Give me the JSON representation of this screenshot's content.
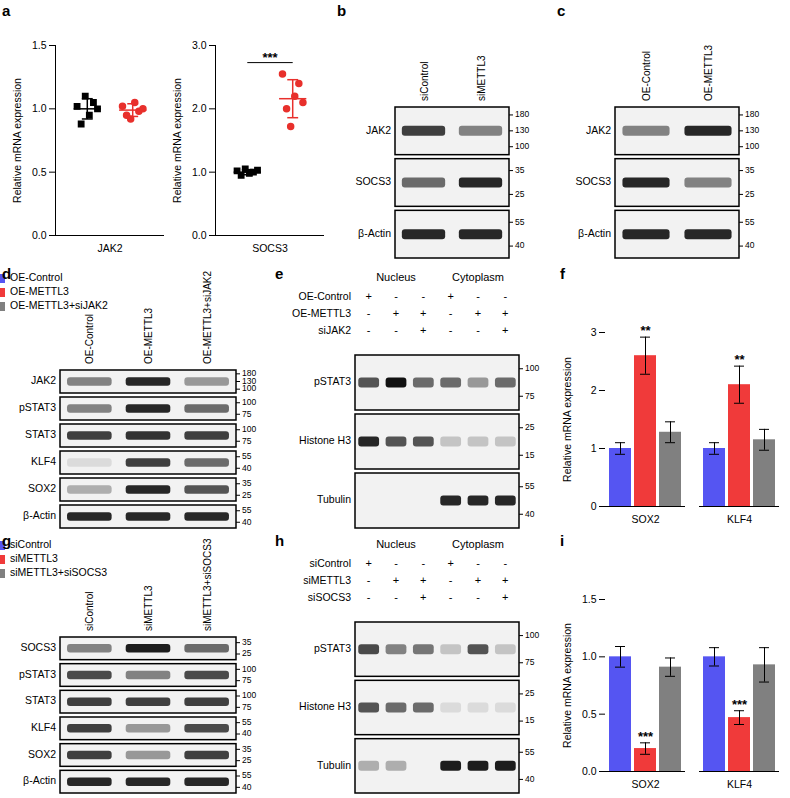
{
  "chart_data": [
    {
      "panel": "a",
      "type": "scatter",
      "ylabel": "Relative mRNA expression",
      "category": "JAK2",
      "ylim": [
        0,
        1.5
      ],
      "yticks": [
        {
          "value": 0,
          "label": "0.0"
        },
        0.5,
        {
          "value": 1,
          "label": "1.0"
        },
        1.5
      ],
      "legend": "top-right",
      "series": [
        {
          "name": "siControl",
          "color": "#000000",
          "marker": "square",
          "values": [
            1.02,
            0.88,
            1.1,
            0.95,
            1.05,
            1.0
          ],
          "mean": 1.0,
          "sd": 0.08
        },
        {
          "name": "siMETTL3",
          "color": "#e8302c",
          "marker": "circle",
          "values": [
            1.02,
            0.95,
            0.92,
            1.05,
            0.98,
            1.0
          ],
          "mean": 0.99,
          "sd": 0.05
        }
      ]
    },
    {
      "type": "scatter",
      "ylabel": "Relative mRNA expression",
      "category": "SOCS3",
      "ylim": [
        0,
        3
      ],
      "yticks": [
        {
          "value": 0,
          "label": "0.0"
        },
        {
          "value": 1,
          "label": "1.0"
        },
        {
          "value": 2,
          "label": "2.0"
        },
        {
          "value": 3,
          "label": "3.0"
        }
      ],
      "legend": "top-right",
      "significance": "***",
      "series": [
        {
          "name": "siControl",
          "color": "#000000",
          "marker": "square",
          "values": [
            1.02,
            0.95,
            1.05,
            0.98,
            1.0,
            1.03
          ],
          "mean": 1.0,
          "sd": 0.04
        },
        {
          "name": "siMETTL3",
          "color": "#e8302c",
          "marker": "circle",
          "values": [
            2.55,
            2.0,
            1.72,
            2.2,
            2.4,
            2.1
          ],
          "mean": 2.16,
          "sd": 0.3
        }
      ]
    },
    {
      "panel": "f",
      "type": "bar",
      "ylabel": "Relative mRNA expression",
      "categories": [
        "SOX2",
        "KLF4"
      ],
      "ylim": [
        0,
        3
      ],
      "yticks": [
        0,
        1,
        2,
        3
      ],
      "legend": "top-right",
      "series": [
        {
          "name": "OE-Control",
          "color": "#5555f2",
          "values": [
            1.0,
            1.0
          ],
          "error": [
            0.1,
            0.1
          ]
        },
        {
          "name": "OE-METTL3",
          "color": "#f03a3a",
          "values": [
            2.6,
            2.1
          ],
          "error": [
            0.32,
            0.32
          ],
          "significance": [
            "**",
            "**"
          ]
        },
        {
          "name": "OE-METTL3+siJAK2",
          "color": "#808080",
          "values": [
            1.28,
            1.15
          ],
          "error": [
            0.18,
            0.18
          ]
        }
      ]
    },
    {
      "panel": "i",
      "type": "bar",
      "ylabel": "Relative mRNA expression",
      "categories": [
        "SOX2",
        "KLF4"
      ],
      "ylim": [
        0,
        1.5
      ],
      "yticks": [
        {
          "value": 0,
          "label": "0.0"
        },
        0.5,
        {
          "value": 1,
          "label": "1.0"
        },
        1.5
      ],
      "legend": "top-right",
      "series": [
        {
          "name": "siControl",
          "color": "#5555f2",
          "values": [
            1.0,
            1.0
          ],
          "error": [
            0.09,
            0.08
          ]
        },
        {
          "name": "siMETTL3",
          "color": "#f03a3a",
          "values": [
            0.2,
            0.47
          ],
          "error": [
            0.05,
            0.06
          ],
          "significance": [
            "***",
            "***"
          ]
        },
        {
          "name": "siMETTL3+siSOCS3",
          "color": "#808080",
          "values": [
            0.91,
            0.93
          ],
          "error": [
            0.08,
            0.15
          ]
        }
      ]
    }
  ],
  "blots": [
    {
      "panel": "b",
      "lanes": [
        "siControl",
        "siMETTL3"
      ],
      "rows": [
        {
          "name": "JAK2",
          "markers": [
            180,
            130,
            100
          ],
          "intensity": [
            0.8,
            0.5
          ]
        },
        {
          "name": "SOCS3",
          "markers": [
            35,
            25
          ],
          "intensity": [
            0.6,
            0.9
          ]
        },
        {
          "name": "β-Actin",
          "markers": [
            55,
            40
          ],
          "intensity": [
            0.9,
            0.9
          ]
        }
      ]
    },
    {
      "panel": "c",
      "lanes": [
        "OE-Control",
        "OE-METTL3"
      ],
      "rows": [
        {
          "name": "JAK2",
          "markers": [
            180,
            130,
            100
          ],
          "intensity": [
            0.5,
            0.9
          ]
        },
        {
          "name": "SOCS3",
          "markers": [
            35,
            25
          ],
          "intensity": [
            0.9,
            0.5
          ]
        },
        {
          "name": "β-Actin",
          "markers": [
            55,
            40
          ],
          "intensity": [
            0.9,
            0.9
          ]
        }
      ]
    },
    {
      "panel": "d",
      "lanes": [
        "OE-Control",
        "OE-METTL3",
        "OE-METTL3+siJAK2"
      ],
      "rows": [
        {
          "name": "JAK2",
          "markers": [
            180,
            130,
            100
          ],
          "intensity": [
            0.5,
            0.9,
            0.4
          ]
        },
        {
          "name": "pSTAT3",
          "markers": [
            100,
            75
          ],
          "intensity": [
            0.5,
            0.9,
            0.6
          ]
        },
        {
          "name": "STAT3",
          "markers": [
            100,
            75
          ],
          "intensity": [
            0.8,
            0.85,
            0.8
          ]
        },
        {
          "name": "KLF4",
          "markers": [
            55,
            40
          ],
          "intensity": [
            0.1,
            0.8,
            0.6
          ]
        },
        {
          "name": "SOX2",
          "markers": [
            35,
            25
          ],
          "intensity": [
            0.3,
            0.9,
            0.7
          ]
        },
        {
          "name": "β-Actin",
          "markers": [
            55,
            40
          ],
          "intensity": [
            0.9,
            0.9,
            0.9
          ]
        }
      ]
    },
    {
      "panel": "e",
      "groups": [
        "Nucleus",
        "Cytoplasm"
      ],
      "conditions": [
        {
          "name": "OE-Control",
          "signs": [
            "+",
            "-",
            "-",
            "+",
            "-",
            "-"
          ]
        },
        {
          "name": "OE-METTL3",
          "signs": [
            "-",
            "+",
            "+",
            "-",
            "+",
            "+"
          ]
        },
        {
          "name": "siJAK2",
          "signs": [
            "-",
            "-",
            "+",
            "-",
            "-",
            "+"
          ]
        }
      ],
      "rows": [
        {
          "name": "pSTAT3",
          "markers": [
            100,
            75
          ],
          "intensity": [
            0.7,
            1.0,
            0.6,
            0.6,
            0.4,
            0.6
          ]
        },
        {
          "name": "Histone H3",
          "markers": [
            25,
            15
          ],
          "intensity": [
            0.9,
            0.7,
            0.7,
            0.2,
            0.2,
            0.2
          ]
        },
        {
          "name": "Tubulin",
          "markers": [
            55,
            40
          ],
          "intensity": [
            0,
            0,
            0,
            0.9,
            0.9,
            0.9
          ]
        }
      ]
    },
    {
      "panel": "g",
      "lanes": [
        "siControl",
        "siMETTL3",
        "siMETTL3+siSOCS3"
      ],
      "rows": [
        {
          "name": "SOCS3",
          "markers": [
            35,
            25
          ],
          "intensity": [
            0.5,
            0.95,
            0.6
          ]
        },
        {
          "name": "pSTAT3",
          "markers": [
            100,
            75
          ],
          "intensity": [
            0.75,
            0.5,
            0.75
          ]
        },
        {
          "name": "STAT3",
          "markers": [
            100,
            75
          ],
          "intensity": [
            0.8,
            0.8,
            0.8
          ]
        },
        {
          "name": "KLF4",
          "markers": [
            55,
            40
          ],
          "intensity": [
            0.8,
            0.4,
            0.75
          ]
        },
        {
          "name": "SOX2",
          "markers": [
            35,
            25
          ],
          "intensity": [
            0.8,
            0.4,
            0.8
          ]
        },
        {
          "name": "β-Actin",
          "markers": [
            55,
            40
          ],
          "intensity": [
            0.9,
            0.9,
            0.9
          ]
        }
      ]
    },
    {
      "panel": "h",
      "groups": [
        "Nucleus",
        "Cytoplasm"
      ],
      "conditions": [
        {
          "name": "siControl",
          "signs": [
            "+",
            "-",
            "-",
            "+",
            "-",
            "-"
          ]
        },
        {
          "name": "siMETTL3",
          "signs": [
            "-",
            "+",
            "+",
            "-",
            "+",
            "+"
          ]
        },
        {
          "name": "siSOCS3",
          "signs": [
            "-",
            "-",
            "+",
            "-",
            "-",
            "+"
          ]
        }
      ],
      "rows": [
        {
          "name": "pSTAT3",
          "markers": [
            100,
            75
          ],
          "intensity": [
            0.75,
            0.5,
            0.55,
            0.2,
            0.7,
            0.2
          ]
        },
        {
          "name": "Histone H3",
          "markers": [
            25,
            15
          ],
          "intensity": [
            0.7,
            0.6,
            0.6,
            0.1,
            0.1,
            0.1
          ]
        },
        {
          "name": "Tubulin",
          "markers": [
            55,
            40
          ],
          "intensity": [
            0.3,
            0.3,
            0,
            0.95,
            0.95,
            0.95
          ]
        }
      ]
    }
  ]
}
